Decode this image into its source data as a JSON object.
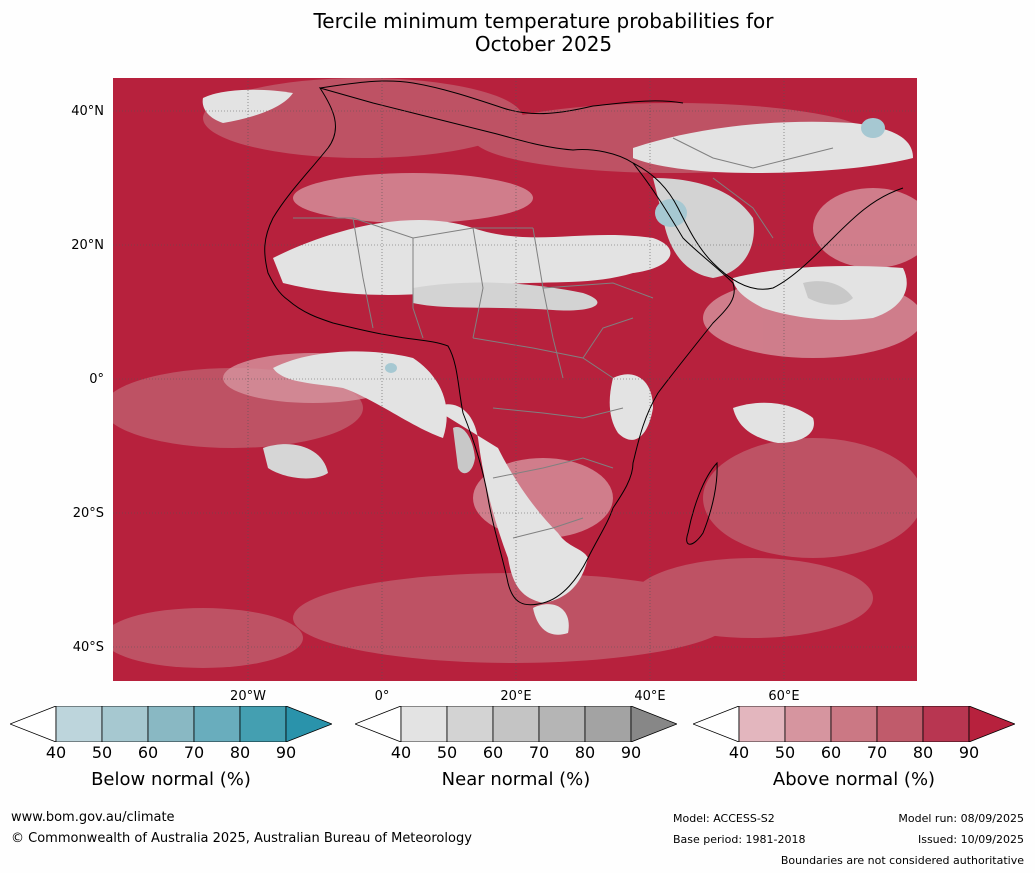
{
  "title_line1": "Tercile minimum temperature probabilities for",
  "title_line2": "October 2025",
  "map": {
    "lat_labels": [
      "40°N",
      "20°N",
      "0°",
      "20°S",
      "40°S"
    ],
    "lon_labels": [
      "20°W",
      "0°",
      "20°E",
      "40°E",
      "60°E"
    ],
    "colors": {
      "above_dominant": "#b7213d",
      "near_light": "#e3e3e3",
      "near_mid": "#c8c8c8",
      "below_light": "#a6c8d2",
      "coast": "#000000",
      "borders": "#808080"
    }
  },
  "legends": [
    {
      "title": "Below normal (%)",
      "ticks": [
        "40",
        "50",
        "60",
        "70",
        "80",
        "90"
      ],
      "colors": [
        "#ffffff",
        "#bdd5dc",
        "#a6c8d0",
        "#89b8c3",
        "#69adbd",
        "#449fb1",
        "#2a93ab"
      ]
    },
    {
      "title": "Near normal (%)",
      "ticks": [
        "40",
        "50",
        "60",
        "70",
        "80",
        "90"
      ],
      "colors": [
        "#ffffff",
        "#e3e3e3",
        "#d3d3d3",
        "#c4c4c4",
        "#b5b5b5",
        "#a3a3a3",
        "#878787"
      ]
    },
    {
      "title": "Above normal (%)",
      "ticks": [
        "40",
        "50",
        "60",
        "70",
        "80",
        "90"
      ],
      "colors": [
        "#ffffff",
        "#e3b6be",
        "#d6959f",
        "#cb7884",
        "#c05b6b",
        "#b83651",
        "#b7213d"
      ]
    }
  ],
  "footer": {
    "url": "www.bom.gov.au/climate",
    "copyright": "© Commonwealth of Australia 2025, Australian Bureau of Meteorology",
    "model": "Model: ACCESS-S2",
    "base_period": "Base period: 1981-2018",
    "model_run": "Model run: 08/09/2025",
    "issued": "Issued: 10/09/2025",
    "disclaimer": "Boundaries are not considered authoritative"
  }
}
